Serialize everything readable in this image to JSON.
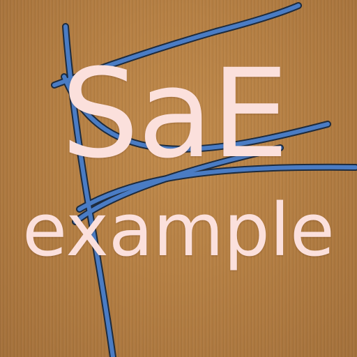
{
  "icon": {
    "background_color": "#b07a3e",
    "text_color": "#fbe0dc",
    "stroke_color": "#4a7cc4",
    "stroke_outline_color": "#1d2b3e",
    "title_line_1": "SaE",
    "title_line_2": "example"
  }
}
